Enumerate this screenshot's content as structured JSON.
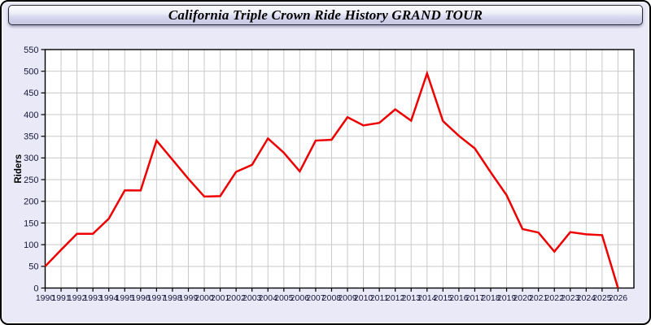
{
  "window": {
    "title": "California Triple Crown Ride History GRAND TOUR"
  },
  "colors": {
    "window_bg": "#e9e9f7",
    "plot_bg": "#ffffff",
    "grid": "#c9c9c9",
    "axis": "#000000",
    "tick_label": "#16163a",
    "line": "#ee0000"
  },
  "chart_data": {
    "type": "line",
    "title": "California Triple Crown Ride History GRAND TOUR",
    "xlabel": "",
    "ylabel": "Riders",
    "ylim": [
      0,
      550
    ],
    "y_ticks": [
      0,
      50,
      100,
      150,
      200,
      250,
      300,
      350,
      400,
      450,
      500,
      550
    ],
    "grid": true,
    "legend_position": "none",
    "x": [
      1990,
      1991,
      1992,
      1993,
      1994,
      1995,
      1996,
      1997,
      1998,
      1999,
      2000,
      2001,
      2002,
      2003,
      2004,
      2005,
      2006,
      2007,
      2008,
      2009,
      2010,
      2011,
      2012,
      2013,
      2014,
      2015,
      2016,
      2017,
      2018,
      2019,
      2020,
      2021,
      2022,
      2023,
      2024,
      2025,
      2026
    ],
    "series": [
      {
        "name": "Riders",
        "color": "#ee0000",
        "values": [
          50,
          88,
          125,
          125,
          160,
          225,
          225,
          340,
          296,
          252,
          211,
          212,
          268,
          284,
          345,
          312,
          269,
          340,
          342,
          394,
          375,
          381,
          412,
          386,
          495,
          385,
          351,
          322,
          267,
          214,
          136,
          128,
          84,
          129,
          124,
          122,
          0
        ]
      }
    ]
  }
}
